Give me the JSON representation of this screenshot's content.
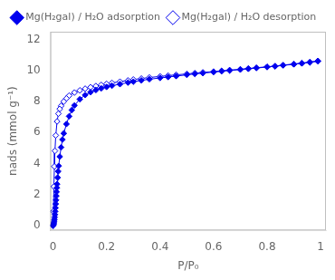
{
  "chart_data": {
    "type": "line",
    "title": "",
    "xlabel": "P/P₀",
    "ylabel": "nads (mmol g⁻¹)",
    "xlim": [
      -0.01,
      1.02
    ],
    "ylim": [
      -0.3,
      12.5
    ],
    "xticks": [
      0,
      0.2,
      0.4,
      0.6,
      0.8,
      1.0
    ],
    "yticks": [
      0,
      2,
      4,
      6,
      8,
      10,
      12
    ],
    "grid": false,
    "legend": "top",
    "series": [
      {
        "name": "Mg(H₂gal) / H₂O adsorption",
        "color": "#0000EE",
        "marker": "diamond",
        "line_style": "solid",
        "x": [
          0.0,
          0.001,
          0.002,
          0.003,
          0.004,
          0.005,
          0.006,
          0.007,
          0.008,
          0.009,
          0.01,
          0.011,
          0.012,
          0.013,
          0.014,
          0.015,
          0.017,
          0.019,
          0.021,
          0.025,
          0.03,
          0.035,
          0.04,
          0.05,
          0.06,
          0.07,
          0.08,
          0.1,
          0.12,
          0.14,
          0.16,
          0.18,
          0.2,
          0.22,
          0.25,
          0.28,
          0.3,
          0.33,
          0.36,
          0.4,
          0.43,
          0.46,
          0.5,
          0.53,
          0.56,
          0.6,
          0.63,
          0.66,
          0.7,
          0.73,
          0.76,
          0.8,
          0.83,
          0.86,
          0.9,
          0.93,
          0.96,
          0.99
        ],
        "values": [
          0.0,
          0.05,
          0.1,
          0.18,
          0.28,
          0.4,
          0.55,
          0.72,
          0.92,
          1.15,
          1.4,
          1.65,
          1.92,
          2.18,
          2.44,
          2.68,
          3.1,
          3.5,
          3.85,
          4.45,
          5.05,
          5.55,
          5.95,
          6.55,
          7.05,
          7.45,
          7.75,
          8.15,
          8.42,
          8.6,
          8.74,
          8.85,
          8.94,
          9.02,
          9.12,
          9.22,
          9.28,
          9.36,
          9.44,
          9.52,
          9.58,
          9.64,
          9.72,
          9.78,
          9.83,
          9.9,
          9.95,
          10.0,
          10.06,
          10.11,
          10.16,
          10.22,
          10.27,
          10.33,
          10.4,
          10.46,
          10.52,
          10.6
        ]
      },
      {
        "name": "Mg(H₂gal) / H₂O desorption",
        "color": "#0000EE",
        "marker": "open_diamond",
        "line_style": "solid",
        "x": [
          0.99,
          0.96,
          0.93,
          0.9,
          0.86,
          0.83,
          0.8,
          0.76,
          0.73,
          0.7,
          0.66,
          0.63,
          0.6,
          0.56,
          0.53,
          0.5,
          0.46,
          0.43,
          0.4,
          0.36,
          0.33,
          0.3,
          0.28,
          0.25,
          0.22,
          0.2,
          0.18,
          0.16,
          0.14,
          0.12,
          0.1,
          0.08,
          0.06,
          0.05,
          0.04,
          0.03,
          0.025,
          0.02,
          0.015,
          0.01,
          0.007,
          0.005,
          0.003,
          0.001,
          0.0
        ],
        "values": [
          10.62,
          10.55,
          10.48,
          10.42,
          10.35,
          10.29,
          10.24,
          10.18,
          10.13,
          10.08,
          10.03,
          9.98,
          9.93,
          9.88,
          9.83,
          9.78,
          9.72,
          9.67,
          9.62,
          9.55,
          9.48,
          9.42,
          9.36,
          9.28,
          9.2,
          9.14,
          9.07,
          9.0,
          8.92,
          8.83,
          8.72,
          8.58,
          8.38,
          8.2,
          8.0,
          7.72,
          7.52,
          7.22,
          6.72,
          5.82,
          4.82,
          3.82,
          2.52,
          0.92,
          0.0
        ]
      }
    ]
  }
}
